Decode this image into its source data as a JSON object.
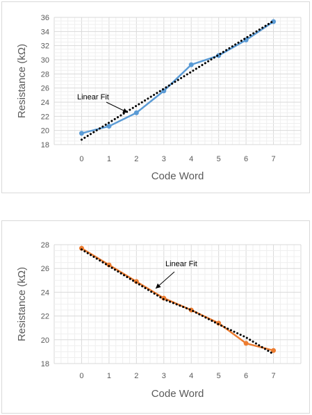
{
  "chart_data": [
    {
      "type": "line",
      "xlabel": "Code Word",
      "ylabel": "Resistance (kΩ)",
      "x": [
        0,
        1,
        2,
        3,
        4,
        5,
        6,
        7
      ],
      "xlim": [
        -1,
        8
      ],
      "ylim": [
        18,
        36
      ],
      "yticks": [
        18,
        20,
        22,
        24,
        26,
        28,
        30,
        32,
        34,
        36
      ],
      "grid": true,
      "series": [
        {
          "values": [
            19.6,
            20.6,
            22.5,
            25.6,
            29.3,
            30.6,
            32.8,
            35.4
          ],
          "color": "#5b9bd5",
          "style": "solid-markers"
        },
        {
          "values": [
            18.7,
            21.1,
            23.5,
            25.9,
            28.3,
            30.7,
            33.1,
            35.5
          ],
          "color": "#000000",
          "style": "dotted"
        }
      ],
      "annotation": {
        "text": "Linear Fit"
      }
    },
    {
      "type": "line",
      "xlabel": "Code Word",
      "ylabel": "Resistance (kΩ)",
      "x": [
        0,
        1,
        2,
        3,
        4,
        5,
        6,
        7
      ],
      "xlim": [
        -1,
        8
      ],
      "ylim": [
        18,
        28
      ],
      "yticks": [
        18,
        20,
        22,
        24,
        26,
        28
      ],
      "grid": true,
      "series": [
        {
          "values": [
            27.7,
            26.3,
            24.9,
            23.5,
            22.5,
            21.4,
            19.7,
            19.1
          ],
          "color": "#ed7d31",
          "style": "solid-markers"
        },
        {
          "values": [
            27.6,
            26.2,
            24.8,
            23.4,
            22.5,
            21.3,
            20.2,
            18.8
          ],
          "color": "#000000",
          "style": "dotted"
        }
      ],
      "annotation": {
        "text": "Linear Fit"
      }
    }
  ]
}
